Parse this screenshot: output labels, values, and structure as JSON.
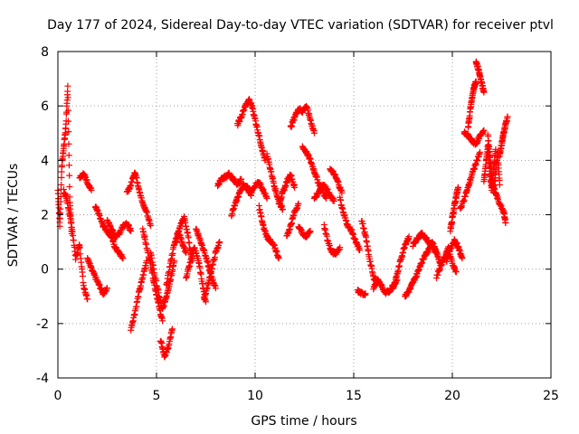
{
  "chart_data": {
    "type": "scatter",
    "title": "Day 177 of 2024, Sidereal Day-to-day VTEC variation (SDTVAR) for receiver ptvl",
    "xlabel": "GPS time / hours",
    "ylabel": "SDTVAR / TECUs",
    "xlim": [
      0,
      25
    ],
    "ylim": [
      -4,
      8
    ],
    "x_ticks": [
      0,
      5,
      10,
      15,
      20,
      25
    ],
    "x_tick_labels": [
      "0",
      "5",
      "10",
      "15",
      "20",
      "25"
    ],
    "y_ticks": [
      -4,
      -2,
      0,
      2,
      4,
      6,
      8
    ],
    "y_tick_labels": [
      "-4",
      "-2",
      "0",
      "2",
      "4",
      "6",
      "8"
    ],
    "grid": true,
    "marker": "+",
    "color": "#ff0000",
    "series": [
      {
        "name": "ptvl",
        "tracks": [
          {
            "x": [
              0.0,
              0.1,
              0.2,
              0.3,
              0.4,
              0.5,
              0.6,
              0.7
            ],
            "y": [
              2.9,
              1.6,
              3.8,
              4.5,
              5.2,
              6.7,
              2.6,
              1.3
            ]
          },
          {
            "x": [
              0.3,
              0.5,
              0.7,
              0.9,
              1.1,
              1.3,
              1.5
            ],
            "y": [
              2.9,
              2.4,
              1.6,
              0.4,
              0.9,
              -0.6,
              -1.1
            ]
          },
          {
            "x": [
              1.1,
              1.3,
              1.5,
              1.7
            ],
            "y": [
              3.4,
              3.5,
              3.2,
              2.9
            ]
          },
          {
            "x": [
              1.5,
              1.7,
              1.9,
              2.1,
              2.3,
              2.5
            ],
            "y": [
              0.4,
              0.0,
              -0.3,
              -0.6,
              -0.9,
              -0.7
            ]
          },
          {
            "x": [
              1.9,
              2.1,
              2.3,
              2.5,
              2.7,
              2.9,
              3.1,
              3.3
            ],
            "y": [
              2.3,
              2.0,
              1.6,
              1.4,
              1.2,
              0.8,
              0.6,
              0.4
            ]
          },
          {
            "x": [
              2.5,
              2.7,
              2.9,
              3.1,
              3.3,
              3.5,
              3.7
            ],
            "y": [
              1.8,
              1.5,
              1.2,
              1.3,
              1.6,
              1.7,
              1.4
            ]
          },
          {
            "x": [
              3.5,
              3.7,
              3.9,
              4.1,
              4.3,
              4.5,
              4.7
            ],
            "y": [
              2.8,
              3.1,
              3.6,
              3.0,
              2.4,
              2.1,
              1.6
            ]
          },
          {
            "x": [
              3.7,
              3.9,
              4.1,
              4.3,
              4.5
            ],
            "y": [
              -2.2,
              -1.6,
              -0.9,
              -0.3,
              0.3
            ]
          },
          {
            "x": [
              4.3,
              4.5,
              4.7,
              4.9,
              5.1,
              5.3
            ],
            "y": [
              1.5,
              0.8,
              0.2,
              -0.6,
              -1.3,
              -1.9
            ]
          },
          {
            "x": [
              4.7,
              4.9,
              5.1,
              5.3,
              5.5,
              5.7,
              5.9
            ],
            "y": [
              0.6,
              -0.2,
              -0.9,
              -1.5,
              -1.0,
              -0.4,
              0.3
            ]
          },
          {
            "x": [
              5.2,
              5.4,
              5.6,
              5.8
            ],
            "y": [
              -2.6,
              -3.2,
              -2.9,
              -2.2
            ]
          },
          {
            "x": [
              5.5,
              5.7,
              5.9,
              6.1,
              6.3,
              6.5
            ],
            "y": [
              -0.6,
              0.2,
              0.9,
              1.4,
              1.0,
              0.6
            ]
          },
          {
            "x": [
              6.0,
              6.2,
              6.4,
              6.6,
              6.8
            ],
            "y": [
              1.0,
              1.6,
              1.9,
              1.2,
              0.3
            ]
          },
          {
            "x": [
              6.5,
              6.7,
              6.9,
              7.1,
              7.3,
              7.5
            ],
            "y": [
              -0.3,
              0.2,
              0.8,
              0.4,
              -0.4,
              -1.2
            ]
          },
          {
            "x": [
              7.0,
              7.2,
              7.4,
              7.6,
              7.8,
              8.0
            ],
            "y": [
              1.5,
              1.1,
              0.7,
              0.2,
              -0.3,
              -0.7
            ]
          },
          {
            "x": [
              7.4,
              7.6,
              7.8,
              8.0,
              8.2
            ],
            "y": [
              -1.1,
              -0.6,
              0.0,
              0.6,
              1.0
            ]
          },
          {
            "x": [
              8.1,
              8.3,
              8.5,
              8.7,
              8.9,
              9.1,
              9.3
            ],
            "y": [
              3.1,
              3.3,
              3.4,
              3.5,
              3.3,
              3.1,
              3.3
            ]
          },
          {
            "x": [
              8.8,
              9.0,
              9.2,
              9.4,
              9.6,
              9.8
            ],
            "y": [
              2.0,
              2.4,
              2.8,
              3.1,
              3.0,
              2.7
            ]
          },
          {
            "x": [
              9.1,
              9.3,
              9.5,
              9.7,
              9.9
            ],
            "y": [
              5.3,
              5.6,
              6.0,
              6.2,
              5.9
            ]
          },
          {
            "x": [
              9.9,
              10.1,
              10.3,
              10.5
            ],
            "y": [
              5.8,
              5.2,
              4.6,
              4.0
            ]
          },
          {
            "x": [
              9.6,
              9.8,
              10.0,
              10.2,
              10.4,
              10.6
            ],
            "y": [
              3.0,
              2.8,
              3.1,
              3.2,
              2.9,
              2.6
            ]
          },
          {
            "x": [
              10.2,
              10.4,
              10.6,
              10.8,
              11.0,
              11.2
            ],
            "y": [
              2.3,
              1.6,
              1.2,
              1.0,
              0.8,
              0.4
            ]
          },
          {
            "x": [
              10.6,
              10.8,
              11.0,
              11.2,
              11.4
            ],
            "y": [
              4.2,
              3.6,
              3.0,
              2.5,
              2.2
            ]
          },
          {
            "x": [
              11.2,
              11.4,
              11.6,
              11.8,
              12.0
            ],
            "y": [
              2.4,
              2.8,
              3.2,
              3.5,
              3.0
            ]
          },
          {
            "x": [
              11.6,
              11.8,
              12.0,
              12.2
            ],
            "y": [
              1.2,
              1.6,
              2.1,
              2.4
            ]
          },
          {
            "x": [
              11.8,
              12.0,
              12.2,
              12.4,
              12.6,
              12.8,
              13.0
            ],
            "y": [
              5.2,
              5.6,
              5.9,
              5.8,
              6.0,
              5.5,
              5.0
            ]
          },
          {
            "x": [
              12.2,
              12.4,
              12.6,
              12.8
            ],
            "y": [
              1.6,
              1.3,
              1.2,
              1.4
            ]
          },
          {
            "x": [
              12.4,
              12.6,
              12.8,
              13.0,
              13.2,
              13.4,
              13.6
            ],
            "y": [
              4.5,
              4.3,
              4.0,
              3.6,
              3.2,
              2.9,
              2.6
            ]
          },
          {
            "x": [
              13.0,
              13.2,
              13.4,
              13.6,
              13.8,
              14.0
            ],
            "y": [
              2.6,
              2.8,
              3.1,
              3.0,
              2.7,
              2.5
            ]
          },
          {
            "x": [
              13.8,
              14.0,
              14.2,
              14.4
            ],
            "y": [
              3.7,
              3.5,
              3.2,
              2.8
            ]
          },
          {
            "x": [
              13.5,
              13.7,
              13.9,
              14.1,
              14.3
            ],
            "y": [
              1.6,
              1.0,
              0.6,
              0.6,
              0.8
            ]
          },
          {
            "x": [
              14.3,
              14.5,
              14.7,
              14.9,
              15.1,
              15.3
            ],
            "y": [
              2.6,
              2.0,
              1.6,
              1.4,
              1.0,
              0.7
            ]
          },
          {
            "x": [
              15.2,
              15.4,
              15.6
            ],
            "y": [
              -0.8,
              -0.9,
              -0.9
            ]
          },
          {
            "x": [
              15.4,
              15.6,
              15.8,
              16.0,
              16.2
            ],
            "y": [
              1.8,
              1.2,
              0.4,
              -0.3,
              -0.5
            ]
          },
          {
            "x": [
              16.0,
              16.2,
              16.4,
              16.6,
              16.8,
              17.0,
              17.2
            ],
            "y": [
              -0.7,
              -0.4,
              -0.6,
              -0.9,
              -0.8,
              -0.6,
              -0.4
            ]
          },
          {
            "x": [
              17.0,
              17.2,
              17.4,
              17.6,
              17.8
            ],
            "y": [
              -0.7,
              -0.2,
              0.4,
              0.9,
              1.2
            ]
          },
          {
            "x": [
              17.6,
              17.8,
              18.0,
              18.2,
              18.4
            ],
            "y": [
              -1.0,
              -0.8,
              -0.5,
              -0.2,
              0.2
            ]
          },
          {
            "x": [
              18.0,
              18.2,
              18.4,
              18.6,
              18.8,
              19.0,
              19.2
            ],
            "y": [
              0.9,
              1.1,
              1.3,
              1.2,
              1.0,
              0.8,
              0.6
            ]
          },
          {
            "x": [
              18.4,
              18.6,
              18.8,
              19.0,
              19.2,
              19.4
            ],
            "y": [
              0.2,
              0.5,
              0.7,
              1.0,
              0.6,
              0.2
            ]
          },
          {
            "x": [
              19.2,
              19.4,
              19.6,
              19.8,
              20.0,
              20.2
            ],
            "y": [
              -0.3,
              0.1,
              0.4,
              0.8,
              0.2,
              -0.1
            ]
          },
          {
            "x": [
              19.7,
              19.9,
              20.1,
              20.3,
              20.5
            ],
            "y": [
              0.3,
              0.7,
              1.1,
              0.8,
              0.4
            ]
          },
          {
            "x": [
              19.9,
              20.0,
              20.1,
              20.2,
              20.3
            ],
            "y": [
              1.4,
              1.9,
              2.3,
              2.7,
              3.0
            ]
          },
          {
            "x": [
              20.4,
              20.6,
              20.8,
              21.0,
              21.2,
              21.4
            ],
            "y": [
              2.2,
              2.6,
              3.0,
              3.5,
              3.9,
              4.3
            ]
          },
          {
            "x": [
              20.6,
              20.8,
              21.0,
              21.2,
              21.4,
              21.6
            ],
            "y": [
              5.0,
              4.9,
              4.7,
              4.6,
              4.9,
              5.1
            ]
          },
          {
            "x": [
              20.8,
              20.9,
              21.0,
              21.1,
              21.2
            ],
            "y": [
              5.2,
              5.8,
              6.3,
              6.7,
              6.9
            ]
          },
          {
            "x": [
              21.2,
              21.3,
              21.4,
              21.5,
              21.6
            ],
            "y": [
              7.6,
              7.4,
              7.1,
              6.8,
              6.5
            ]
          },
          {
            "x": [
              21.6,
              21.7,
              21.8,
              21.9,
              22.0,
              22.1,
              22.2
            ],
            "y": [
              3.2,
              3.9,
              4.5,
              3.6,
              2.9,
              3.7,
              4.4
            ]
          },
          {
            "x": [
              21.8,
              21.9,
              22.0,
              22.1,
              22.2,
              22.3,
              22.4
            ],
            "y": [
              4.9,
              4.2,
              3.4,
              2.8,
              3.6,
              4.3,
              3.1
            ]
          },
          {
            "x": [
              22.0,
              22.2,
              22.4,
              22.6,
              22.7
            ],
            "y": [
              3.2,
              2.8,
              2.4,
              2.1,
              1.7
            ]
          },
          {
            "x": [
              22.4,
              22.5,
              22.6,
              22.7,
              22.8
            ],
            "y": [
              4.2,
              4.6,
              5.0,
              5.3,
              5.6
            ]
          }
        ]
      }
    ]
  }
}
